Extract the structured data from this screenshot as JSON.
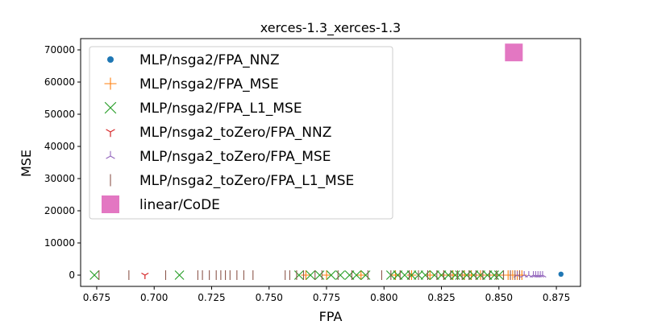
{
  "chart_data": {
    "type": "scatter",
    "title": "xerces-1.3_xerces-1.3",
    "xlabel": "FPA",
    "ylabel": "MSE",
    "xlim": [
      0.668,
      0.8855
    ],
    "ylim": [
      -3500,
      73500
    ],
    "xticks": [
      "0.675",
      "0.700",
      "0.725",
      "0.750",
      "0.775",
      "0.800",
      "0.825",
      "0.850",
      "0.875"
    ],
    "yticks": [
      "0",
      "10000",
      "20000",
      "30000",
      "40000",
      "50000",
      "60000",
      "70000"
    ],
    "grid": false,
    "legend_position": "upper-left",
    "series": [
      {
        "name": "MLP/nsga2/FPA_NNZ",
        "marker": "circle",
        "color": "#1f77b4",
        "x": [
          0.877
        ],
        "y": [
          300
        ]
      },
      {
        "name": "MLP/nsga2/FPA_MSE",
        "marker": "plus",
        "color": "#ff7f0e",
        "x": [
          0.766,
          0.775,
          0.79,
          0.805,
          0.812,
          0.82,
          0.826,
          0.83,
          0.835,
          0.838,
          0.842,
          0.846,
          0.849,
          0.852,
          0.854,
          0.856,
          0.858,
          0.86
        ],
        "y": [
          0,
          0,
          0,
          0,
          0,
          0,
          0,
          0,
          0,
          0,
          0,
          0,
          0,
          0,
          0,
          0,
          0,
          0
        ]
      },
      {
        "name": "MLP/nsga2/FPA_L1_MSE",
        "marker": "x",
        "color": "#2ca02c",
        "x": [
          0.674,
          0.711,
          0.763,
          0.768,
          0.772,
          0.777,
          0.781,
          0.785,
          0.788,
          0.792,
          0.803,
          0.806,
          0.809,
          0.812,
          0.815,
          0.818,
          0.822,
          0.825,
          0.828,
          0.831,
          0.833,
          0.836,
          0.839,
          0.842,
          0.845,
          0.848,
          0.85
        ],
        "y": [
          0,
          0,
          0,
          0,
          0,
          0,
          0,
          0,
          0,
          0,
          0,
          0,
          0,
          0,
          0,
          0,
          0,
          0,
          0,
          0,
          0,
          0,
          0,
          0,
          0,
          0,
          0
        ]
      },
      {
        "name": "MLP/nsga2_toZero/FPA_NNZ",
        "marker": "tri_down",
        "color": "#d62728",
        "x": [
          0.696
        ],
        "y": [
          0
        ]
      },
      {
        "name": "MLP/nsga2_toZero/FPA_MSE",
        "marker": "tri_left",
        "color": "#9467bd",
        "x": [
          0.858,
          0.861,
          0.863,
          0.865,
          0.866,
          0.867,
          0.868,
          0.869
        ],
        "y": [
          0,
          0,
          0,
          0,
          0,
          0,
          0,
          0
        ]
      },
      {
        "name": "MLP/nsga2_toZero/FPA_L1_MSE",
        "marker": "vline",
        "color": "#8c564b",
        "x": [
          0.676,
          0.689,
          0.705,
          0.719,
          0.721,
          0.724,
          0.727,
          0.729,
          0.731,
          0.733,
          0.736,
          0.739,
          0.743,
          0.757,
          0.759,
          0.762,
          0.765,
          0.77,
          0.773,
          0.78,
          0.786,
          0.793,
          0.799,
          0.803,
          0.807,
          0.811,
          0.815,
          0.819,
          0.823,
          0.826,
          0.829,
          0.832,
          0.834,
          0.837,
          0.84,
          0.843,
          0.846,
          0.849,
          0.852,
          0.855,
          0.857,
          0.859
        ],
        "y": [
          0,
          0,
          0,
          0,
          0,
          0,
          0,
          0,
          0,
          0,
          0,
          0,
          0,
          0,
          0,
          0,
          0,
          0,
          0,
          0,
          0,
          0,
          0,
          0,
          0,
          0,
          0,
          0,
          0,
          0,
          0,
          0,
          0,
          0,
          0,
          0,
          0,
          0,
          0,
          0,
          0,
          0
        ]
      },
      {
        "name": "linear/CoDE",
        "marker": "square",
        "color": "#e377c2",
        "x": [
          0.8565
        ],
        "y": [
          69200
        ]
      }
    ]
  }
}
